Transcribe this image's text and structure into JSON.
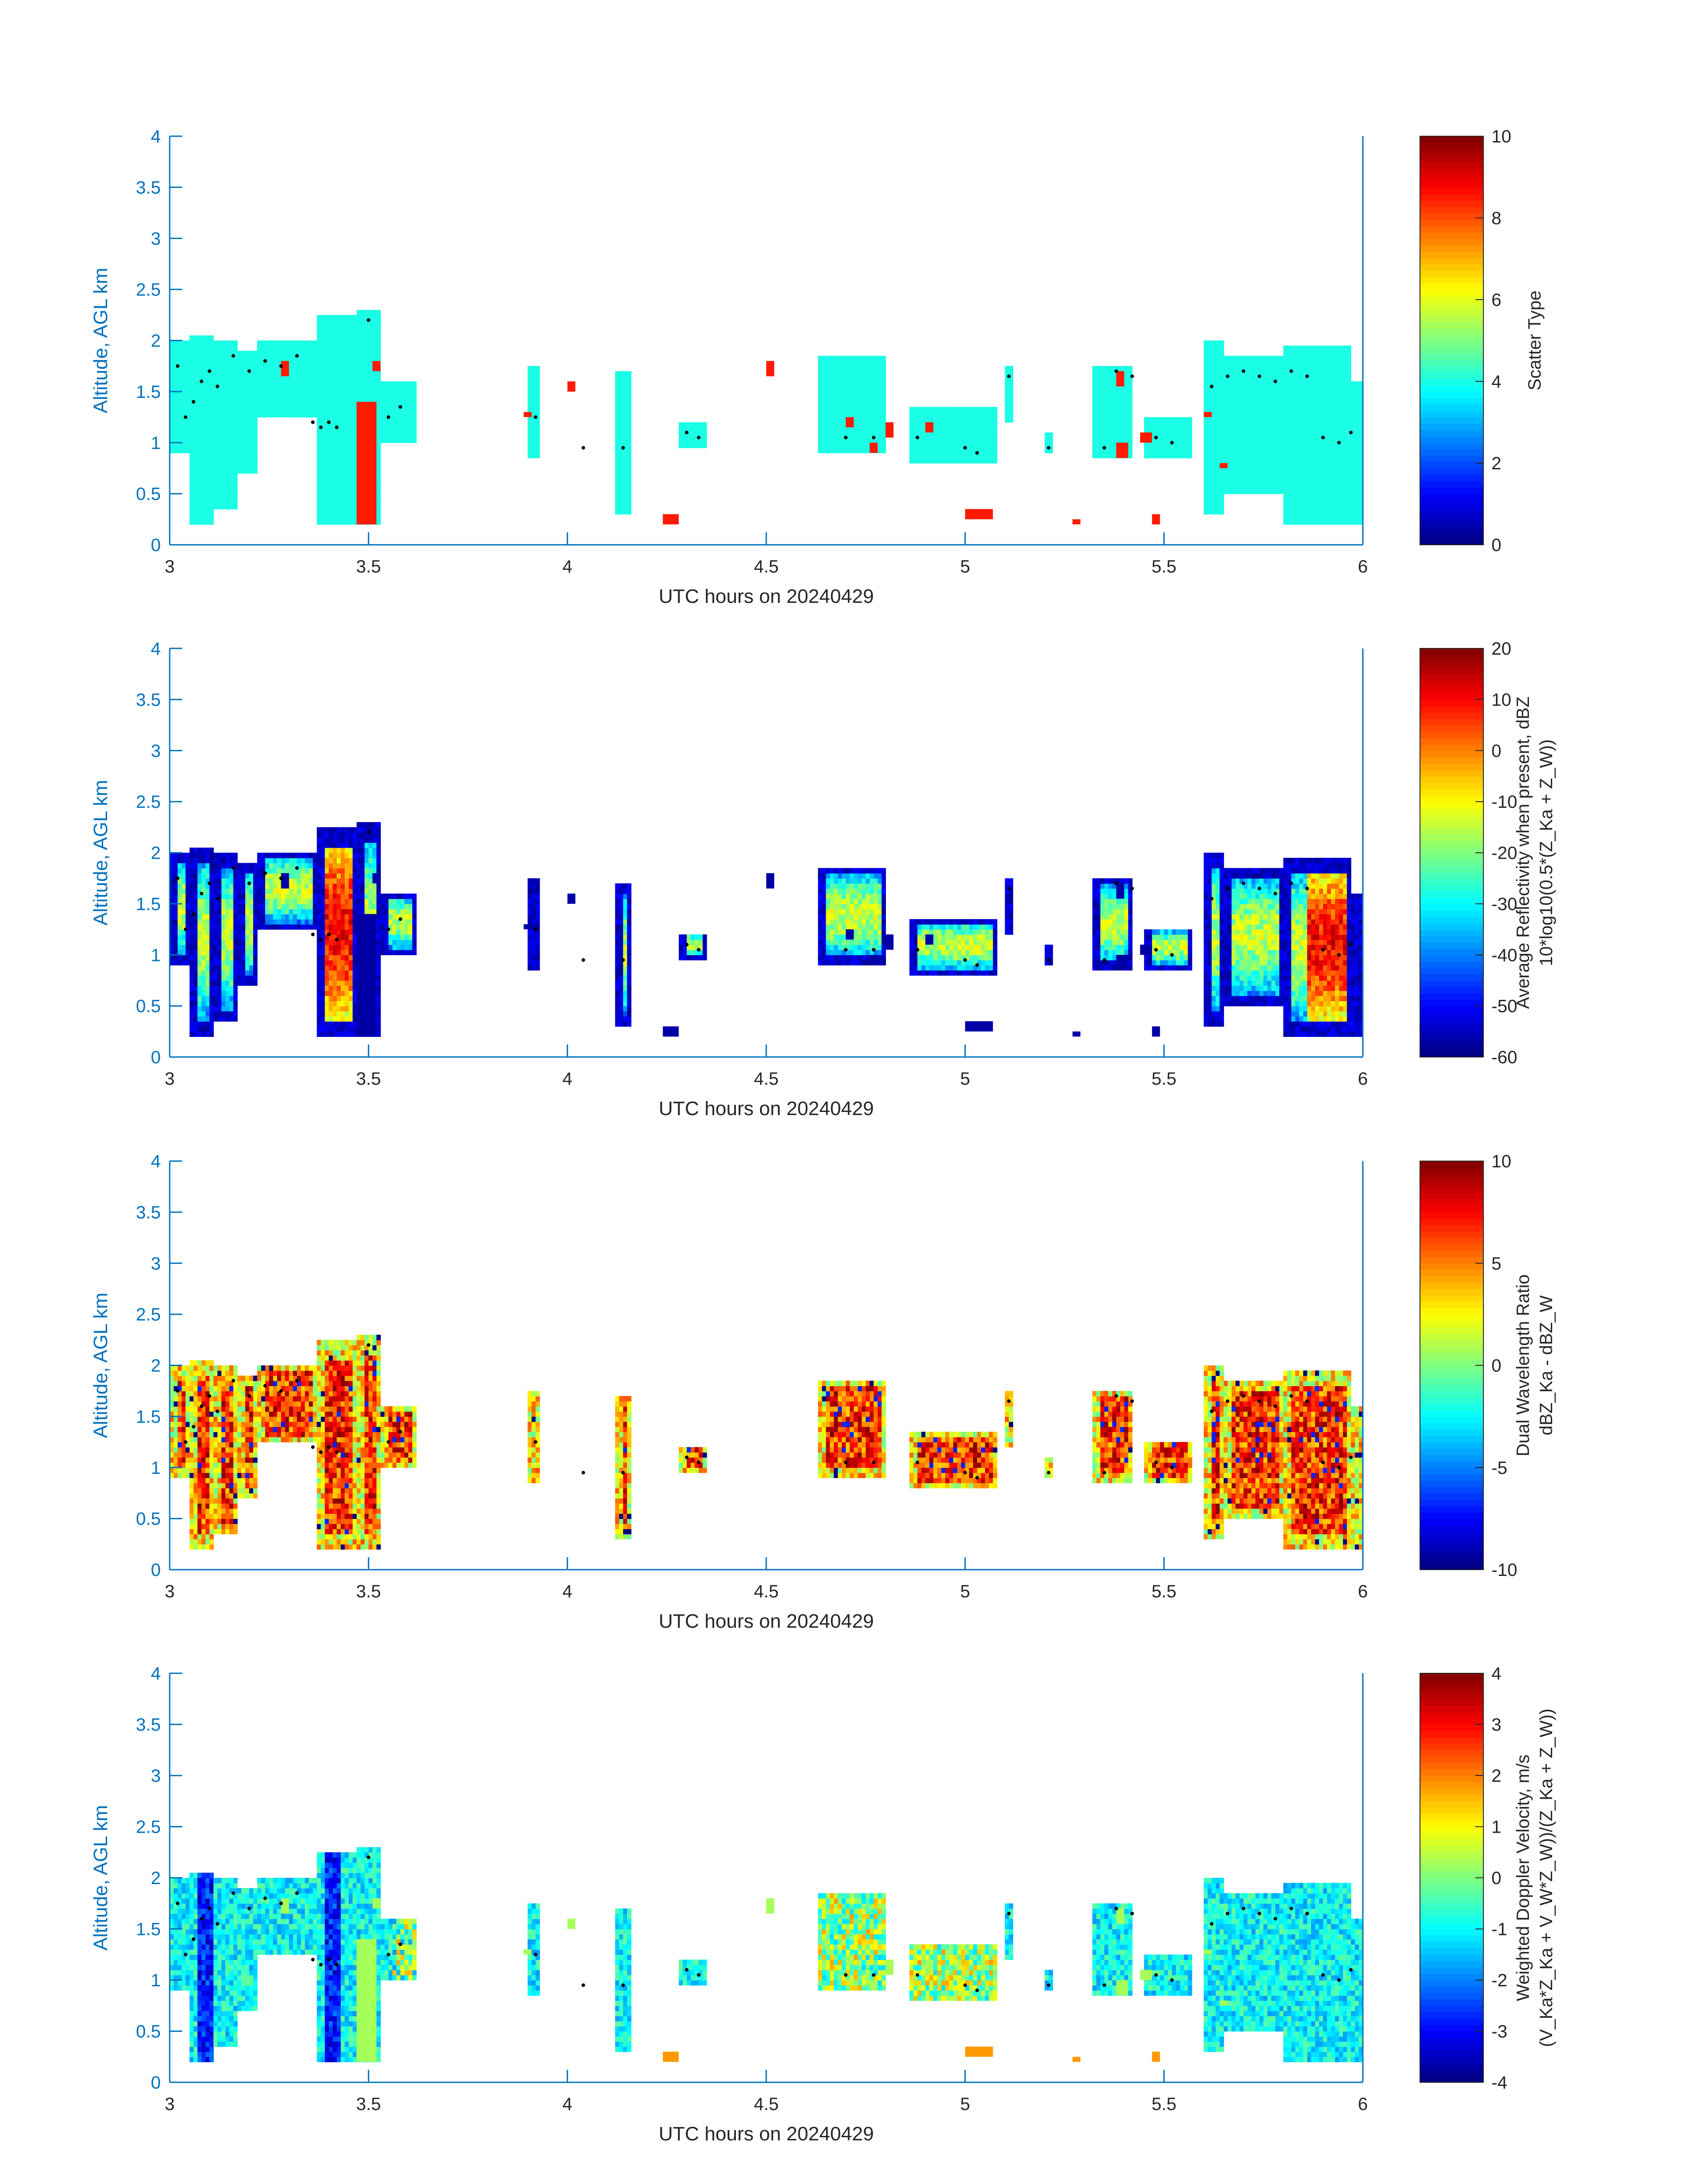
{
  "figure": {
    "colors": {
      "axis": "#0072BD",
      "text": "#262626",
      "background": "#ffffff",
      "marker": "#000000"
    }
  },
  "chart_data": [
    {
      "type": "heatmap",
      "id": "scatter",
      "xlabel": "UTC hours on 20240429",
      "ylabel": "Altitude, AGL km",
      "xlim": [
        3,
        6
      ],
      "ylim": [
        0,
        4
      ],
      "x_ticks": [
        "3",
        "3.5",
        "4",
        "4.5",
        "5",
        "5.5",
        "6"
      ],
      "y_ticks": [
        "0",
        "0.5",
        "1",
        "1.5",
        "2",
        "2.5",
        "3",
        "3.5",
        "4"
      ],
      "colorbar": {
        "label_lines": [
          "Scatter Type"
        ],
        "ticks": [
          "0",
          "2",
          "4",
          "6",
          "8",
          "10"
        ],
        "range": [
          0,
          10
        ]
      },
      "field": "scatter_type",
      "dominant_value": 4,
      "secondary_value": 8.5
    },
    {
      "type": "heatmap",
      "id": "reflectivity",
      "xlabel": "UTC hours on 20240429",
      "ylabel": "Altitude, AGL km",
      "xlim": [
        3,
        6
      ],
      "ylim": [
        0,
        4
      ],
      "x_ticks": [
        "3",
        "3.5",
        "4",
        "4.5",
        "5",
        "5.5",
        "6"
      ],
      "y_ticks": [
        "0",
        "0.5",
        "1",
        "1.5",
        "2",
        "2.5",
        "3",
        "3.5",
        "4"
      ],
      "colorbar": {
        "label_lines": [
          "Average Reflectivity when present, dBZ",
          "10*log10(0.5*(Z_Ka + Z_W))"
        ],
        "ticks": [
          "-60",
          "-50",
          "-40",
          "-30",
          "-20",
          "-10",
          "0",
          "10",
          "20"
        ],
        "range": [
          -60,
          20
        ]
      },
      "field": "reflectivity_dBZ"
    },
    {
      "type": "heatmap",
      "id": "dwr",
      "xlabel": "UTC hours on 20240429",
      "ylabel": "Altitude, AGL km",
      "xlim": [
        3,
        6
      ],
      "ylim": [
        0,
        4
      ],
      "x_ticks": [
        "3",
        "3.5",
        "4",
        "4.5",
        "5",
        "5.5",
        "6"
      ],
      "y_ticks": [
        "0",
        "0.5",
        "1",
        "1.5",
        "2",
        "2.5",
        "3",
        "3.5",
        "4"
      ],
      "colorbar": {
        "label_lines": [
          "Dual Wavelength Ratio",
          "dBZ_Ka - dBZ_W"
        ],
        "ticks": [
          "-10",
          "-5",
          "0",
          "5",
          "10"
        ],
        "range": [
          -10,
          10
        ]
      },
      "field": "dwr_dB"
    },
    {
      "type": "heatmap",
      "id": "doppler",
      "xlabel": "UTC hours on 20240429",
      "ylabel": "Altitude, AGL km",
      "xlim": [
        3,
        6
      ],
      "ylim": [
        0,
        4
      ],
      "x_ticks": [
        "3",
        "3.5",
        "4",
        "4.5",
        "5",
        "5.5",
        "6"
      ],
      "y_ticks": [
        "0",
        "0.5",
        "1",
        "1.5",
        "2",
        "2.5",
        "3",
        "3.5",
        "4"
      ],
      "colorbar": {
        "label_lines": [
          "Weighted Doppler Velocity, m/s",
          "(V_Ka*Z_Ka + V_W*Z_W))/(Z_Ka + Z_W))"
        ],
        "ticks": [
          "-4",
          "-3",
          "-2",
          "-1",
          "0",
          "1",
          "2",
          "3",
          "4"
        ],
        "range": [
          -4,
          4
        ]
      },
      "field": "doppler_ms"
    }
  ],
  "cloud_columns": [
    {
      "t": [
        3.0,
        3.05
      ],
      "z": [
        0.9,
        2.0
      ]
    },
    {
      "t": [
        3.05,
        3.11
      ],
      "z": [
        0.2,
        2.05
      ]
    },
    {
      "t": [
        3.11,
        3.17
      ],
      "z": [
        0.35,
        2.0
      ]
    },
    {
      "t": [
        3.17,
        3.22
      ],
      "z": [
        0.7,
        1.9
      ]
    },
    {
      "t": [
        3.22,
        3.37
      ],
      "z": [
        1.25,
        2.0
      ]
    },
    {
      "t": [
        3.37,
        3.47
      ],
      "z": [
        0.2,
        2.25
      ]
    },
    {
      "t": [
        3.47,
        3.53
      ],
      "z": [
        0.2,
        2.3
      ]
    },
    {
      "t": [
        3.53,
        3.62
      ],
      "z": [
        1.0,
        1.6
      ]
    },
    {
      "t": [
        3.9,
        3.93
      ],
      "z": [
        0.85,
        1.75
      ]
    },
    {
      "t": [
        4.12,
        4.16
      ],
      "z": [
        0.3,
        1.7
      ]
    },
    {
      "t": [
        4.28,
        4.35
      ],
      "z": [
        0.95,
        1.2
      ]
    },
    {
      "t": [
        4.63,
        4.8
      ],
      "z": [
        0.9,
        1.85
      ]
    },
    {
      "t": [
        4.86,
        5.08
      ],
      "z": [
        0.8,
        1.35
      ]
    },
    {
      "t": [
        5.1,
        5.12
      ],
      "z": [
        1.2,
        1.75
      ]
    },
    {
      "t": [
        5.2,
        5.22
      ],
      "z": [
        0.9,
        1.1
      ]
    },
    {
      "t": [
        5.32,
        5.42
      ],
      "z": [
        0.85,
        1.75
      ]
    },
    {
      "t": [
        5.45,
        5.57
      ],
      "z": [
        0.85,
        1.25
      ]
    },
    {
      "t": [
        5.6,
        5.65
      ],
      "z": [
        0.3,
        2.0
      ]
    },
    {
      "t": [
        5.65,
        5.8
      ],
      "z": [
        0.5,
        1.85
      ]
    },
    {
      "t": [
        5.8,
        5.97
      ],
      "z": [
        0.2,
        1.95
      ]
    },
    {
      "t": [
        5.97,
        6.0
      ],
      "z": [
        0.2,
        1.6
      ]
    }
  ],
  "secondary_patches": [
    {
      "t": [
        3.28,
        3.3
      ],
      "z": [
        1.65,
        1.8
      ]
    },
    {
      "t": [
        3.47,
        3.52
      ],
      "z": [
        0.2,
        1.4
      ]
    },
    {
      "t": [
        3.51,
        3.53
      ],
      "z": [
        1.7,
        1.8
      ]
    },
    {
      "t": [
        3.89,
        3.91
      ],
      "z": [
        1.25,
        1.3
      ]
    },
    {
      "t": [
        4.0,
        4.02
      ],
      "z": [
        1.5,
        1.6
      ]
    },
    {
      "t": [
        4.24,
        4.28
      ],
      "z": [
        0.2,
        0.3
      ]
    },
    {
      "t": [
        4.5,
        4.52
      ],
      "z": [
        1.65,
        1.8
      ]
    },
    {
      "t": [
        4.7,
        4.72
      ],
      "z": [
        1.15,
        1.25
      ]
    },
    {
      "t": [
        4.76,
        4.78
      ],
      "z": [
        0.9,
        1.0
      ]
    },
    {
      "t": [
        4.8,
        4.82
      ],
      "z": [
        1.05,
        1.2
      ]
    },
    {
      "t": [
        4.9,
        4.92
      ],
      "z": [
        1.1,
        1.2
      ]
    },
    {
      "t": [
        5.0,
        5.07
      ],
      "z": [
        0.25,
        0.35
      ]
    },
    {
      "t": [
        5.27,
        5.29
      ],
      "z": [
        0.2,
        0.25
      ]
    },
    {
      "t": [
        5.38,
        5.41
      ],
      "z": [
        0.85,
        1.0
      ]
    },
    {
      "t": [
        5.38,
        5.4
      ],
      "z": [
        1.55,
        1.7
      ]
    },
    {
      "t": [
        5.44,
        5.47
      ],
      "z": [
        1.0,
        1.1
      ]
    },
    {
      "t": [
        5.47,
        5.49
      ],
      "z": [
        0.2,
        0.3
      ]
    },
    {
      "t": [
        5.6,
        5.62
      ],
      "z": [
        1.25,
        1.3
      ]
    },
    {
      "t": [
        5.64,
        5.66
      ],
      "z": [
        0.75,
        0.8
      ]
    }
  ],
  "cloud_top_markers": [
    {
      "t": 3.02,
      "z": 1.75
    },
    {
      "t": 3.04,
      "z": 1.25
    },
    {
      "t": 3.06,
      "z": 1.4
    },
    {
      "t": 3.08,
      "z": 1.6
    },
    {
      "t": 3.1,
      "z": 1.7
    },
    {
      "t": 3.12,
      "z": 1.55
    },
    {
      "t": 3.16,
      "z": 1.85
    },
    {
      "t": 3.2,
      "z": 1.7
    },
    {
      "t": 3.24,
      "z": 1.8
    },
    {
      "t": 3.28,
      "z": 1.75
    },
    {
      "t": 3.32,
      "z": 1.85
    },
    {
      "t": 3.36,
      "z": 1.2
    },
    {
      "t": 3.38,
      "z": 1.15
    },
    {
      "t": 3.4,
      "z": 1.2
    },
    {
      "t": 3.42,
      "z": 1.15
    },
    {
      "t": 3.5,
      "z": 2.2
    },
    {
      "t": 3.55,
      "z": 1.25
    },
    {
      "t": 3.58,
      "z": 1.35
    },
    {
      "t": 3.92,
      "z": 1.25
    },
    {
      "t": 4.04,
      "z": 0.95
    },
    {
      "t": 4.14,
      "z": 0.95
    },
    {
      "t": 4.3,
      "z": 1.1
    },
    {
      "t": 4.33,
      "z": 1.05
    },
    {
      "t": 4.7,
      "z": 1.05
    },
    {
      "t": 4.77,
      "z": 1.05
    },
    {
      "t": 4.88,
      "z": 1.05
    },
    {
      "t": 5.0,
      "z": 0.95
    },
    {
      "t": 5.03,
      "z": 0.9
    },
    {
      "t": 5.11,
      "z": 1.65
    },
    {
      "t": 5.21,
      "z": 0.95
    },
    {
      "t": 5.35,
      "z": 0.95
    },
    {
      "t": 5.38,
      "z": 1.7
    },
    {
      "t": 5.42,
      "z": 1.65
    },
    {
      "t": 5.48,
      "z": 1.05
    },
    {
      "t": 5.52,
      "z": 1.0
    },
    {
      "t": 5.62,
      "z": 1.55
    },
    {
      "t": 5.66,
      "z": 1.65
    },
    {
      "t": 5.7,
      "z": 1.7
    },
    {
      "t": 5.74,
      "z": 1.65
    },
    {
      "t": 5.78,
      "z": 1.6
    },
    {
      "t": 5.82,
      "z": 1.7
    },
    {
      "t": 5.86,
      "z": 1.65
    },
    {
      "t": 5.9,
      "z": 1.05
    },
    {
      "t": 5.94,
      "z": 1.0
    },
    {
      "t": 5.97,
      "z": 1.1
    }
  ]
}
